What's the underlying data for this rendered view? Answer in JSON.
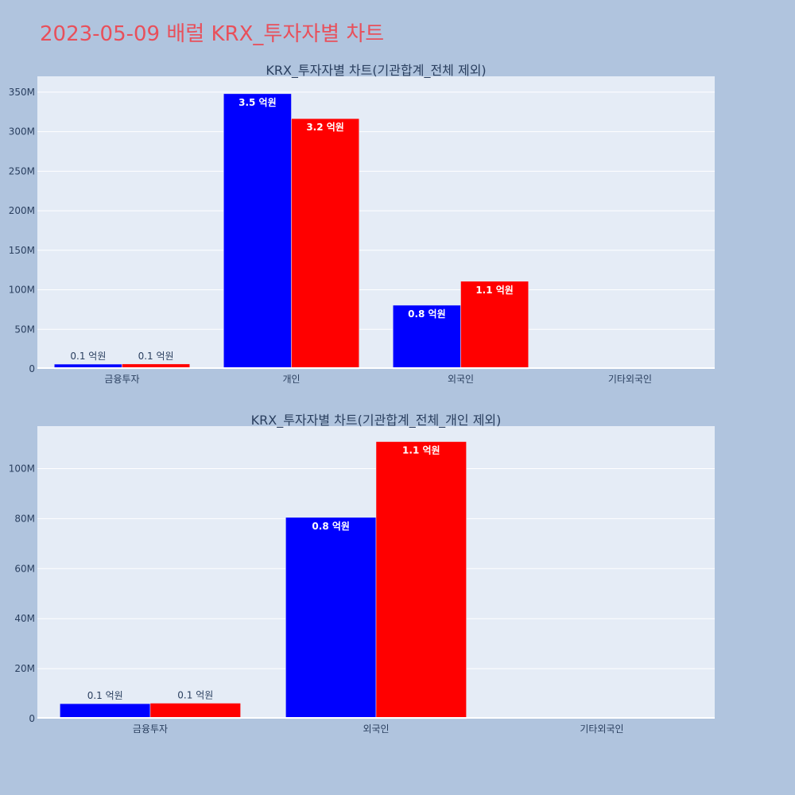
{
  "title": "2023-05-09 배럴 KRX_투자자별 차트",
  "colors": {
    "background": "#b0c4de",
    "plot_bg": "#e5ecf6",
    "title": "#e8505b",
    "series_a": "#0000ff",
    "series_b": "#ff0000"
  },
  "chart_data": [
    {
      "type": "bar",
      "title": "KRX_투자자별 차트(기관합계_전체 제외)",
      "categories": [
        "금융투자",
        "개인",
        "외국인",
        "기타외국인"
      ],
      "ylim": [
        0,
        370000000
      ],
      "yticks": [
        0,
        50000000,
        100000000,
        150000000,
        200000000,
        250000000,
        300000000,
        350000000
      ],
      "ytick_labels": [
        "0",
        "50M",
        "100M",
        "150M",
        "200M",
        "250M",
        "300M",
        "350M"
      ],
      "grid": true,
      "series": [
        {
          "color": "#0000ff",
          "values": [
            6000000,
            348000000,
            80500000,
            0
          ],
          "labels": [
            "0.1 억원",
            "3.5 억원",
            "0.8 억원",
            ""
          ]
        },
        {
          "color": "#ff0000",
          "values": [
            6200000,
            316500000,
            110800000,
            0
          ],
          "labels": [
            "0.1 억원",
            "3.2 억원",
            "1.1 억원",
            ""
          ]
        }
      ]
    },
    {
      "type": "bar",
      "title": "KRX_투자자별 차트(기관합계_전체_개인 제외)",
      "categories": [
        "금융투자",
        "외국인",
        "기타외국인"
      ],
      "ylim": [
        0,
        117000000
      ],
      "yticks": [
        0,
        20000000,
        40000000,
        60000000,
        80000000,
        100000000
      ],
      "ytick_labels": [
        "0",
        "20M",
        "40M",
        "60M",
        "80M",
        "100M"
      ],
      "grid": true,
      "series": [
        {
          "color": "#0000ff",
          "values": [
            6000000,
            80500000,
            0
          ],
          "labels": [
            "0.1 억원",
            "0.8 억원",
            ""
          ]
        },
        {
          "color": "#ff0000",
          "values": [
            6200000,
            110800000,
            0
          ],
          "labels": [
            "0.1 억원",
            "1.1 억원",
            ""
          ]
        }
      ]
    }
  ]
}
